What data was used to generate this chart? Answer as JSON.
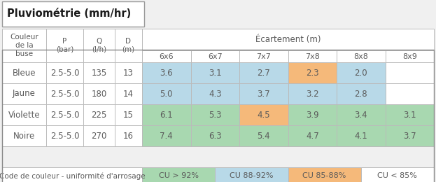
{
  "title": "Pluviométrie (mm/hr)",
  "col0_headers": [
    "Couleur\nde la\nbuse",
    "P\n(bar)",
    "Q\n(l/h)",
    "D\n(m)"
  ],
  "ecart_label": "Écartement (m)",
  "sub_labels": [
    "6x6",
    "6x7",
    "7x7",
    "7x8",
    "8x8",
    "8x9"
  ],
  "rows": [
    [
      "Bleue",
      "2.5-5.0",
      "135",
      "13",
      "3.6",
      "3.1",
      "2.7",
      "2.3",
      "2.0",
      ""
    ],
    [
      "Jaune",
      "2.5-5.0",
      "180",
      "14",
      "5.0",
      "4.3",
      "3.7",
      "3.2",
      "2.8",
      ""
    ],
    [
      "Violette",
      "2.5-5.0",
      "225",
      "15",
      "6.1",
      "5.3",
      "4.5",
      "3.9",
      "3.4",
      "3.1"
    ],
    [
      "Noire",
      "2.5-5.0",
      "270",
      "16",
      "7.4",
      "6.3",
      "5.4",
      "4.7",
      "4.1",
      "3.7"
    ]
  ],
  "cell_colors": {
    "0_4": "#b8d9e8",
    "0_5": "#b8d9e8",
    "0_6": "#b8d9e8",
    "0_7": "#f5b97a",
    "0_8": "#b8d9e8",
    "1_4": "#b8d9e8",
    "1_5": "#b8d9e8",
    "1_6": "#b8d9e8",
    "1_7": "#b8d9e8",
    "1_8": "#b8d9e8",
    "2_4": "#a8d8b0",
    "2_5": "#a8d8b0",
    "2_6": "#f5b97a",
    "2_7": "#a8d8b0",
    "2_8": "#a8d8b0",
    "2_9": "#a8d8b0",
    "3_4": "#a8d8b0",
    "3_5": "#a8d8b0",
    "3_6": "#a8d8b0",
    "3_7": "#a8d8b0",
    "3_8": "#a8d8b0",
    "3_9": "#a8d8b0"
  },
  "legend_prefix": "Code de couleur - uniformité d'arrosage",
  "legend_items": [
    {
      "label": "CU > 92%",
      "color": "#a8d8b0"
    },
    {
      "label": "CU 88-92%",
      "color": "#b8d9e8"
    },
    {
      "label": "CU 85-88%",
      "color": "#f5b97a"
    },
    {
      "label": "CU < 85%",
      "color": "#ffffff"
    }
  ],
  "text_color": "#5a5a5a",
  "border_color": "#bbbbbb",
  "title_color": "#1a1a1a",
  "bg_color": "#f0f0f0"
}
